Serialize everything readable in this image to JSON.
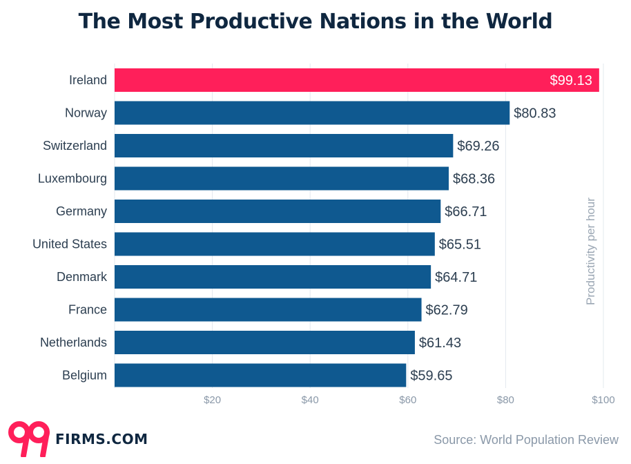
{
  "title": "The Most Productive Nations in the World",
  "source": "Source: World Population Review",
  "logo": {
    "mark": "99",
    "text": "FIRMS.COM"
  },
  "colors": {
    "highlight": "#ff1f5a",
    "bar": "#0f5990",
    "title": "#0f2740"
  },
  "chart_data": {
    "type": "bar",
    "orientation": "horizontal",
    "title": "The Most Productive Nations in the World",
    "ylabel": "Productivity per hour",
    "xlim": [
      0,
      100
    ],
    "xticks": [
      "$20",
      "$40",
      "$60",
      "$80",
      "$100"
    ],
    "xtick_values": [
      20,
      40,
      60,
      80,
      100
    ],
    "grid": true,
    "categories": [
      "Ireland",
      "Norway",
      "Switzerland",
      "Luxembourg",
      "Germany",
      "United States",
      "Denmark",
      "France",
      "Netherlands",
      "Belgium"
    ],
    "values": [
      99.13,
      80.83,
      69.26,
      68.36,
      66.71,
      65.51,
      64.71,
      62.79,
      61.43,
      59.65
    ],
    "value_labels": [
      "$99.13",
      "$80.83",
      "$69.26",
      "$68.36",
      "$66.71",
      "$65.51",
      "$64.71",
      "$62.79",
      "$61.43",
      "$59.65"
    ],
    "highlight_index": 0
  }
}
